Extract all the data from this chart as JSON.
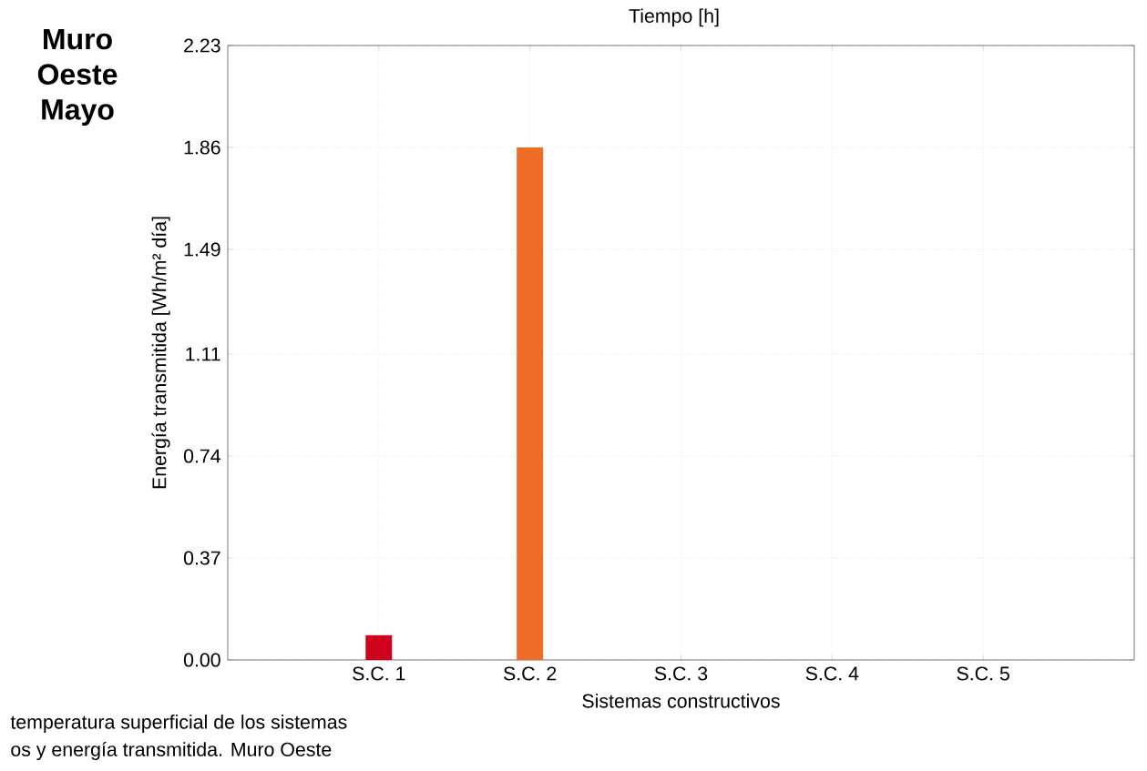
{
  "chart_data": {
    "type": "bar",
    "title": "Muro Oeste Mayo",
    "xlabel": "Sistemas constructivos",
    "ylabel": "Energía transmitida [Wh/m² día]",
    "categories": [
      "S.C. 1",
      "S.C. 2",
      "S.C. 3",
      "S.C. 4",
      "S.C. 5"
    ],
    "values": [
      0.09,
      1.86,
      0,
      0,
      0
    ],
    "colors": [
      "#d0021b",
      "#ee6c25",
      "#ee6c25",
      "#ee6c25",
      "#ee6c25"
    ],
    "ylim": [
      0,
      2.23
    ],
    "yticks": [
      {
        "value": 0,
        "label": "0.00"
      },
      0.37,
      0.74,
      1.11,
      1.49,
      1.86,
      2.23
    ],
    "grid": true,
    "line_style": "dotted",
    "annotations": [
      "Tiempo [h]",
      "temperatura superficial de los sistemas",
      "os y energía transmitida. Muro Oeste"
    ]
  }
}
